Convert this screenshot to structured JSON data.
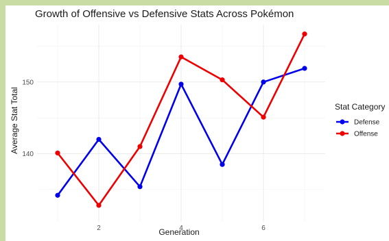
{
  "chart_data": {
    "type": "line",
    "title": "Growth of Offensive vs Defensive Stats Across Pokémon",
    "xlabel": "Generation",
    "ylabel": "Average Stat Total",
    "x": [
      1,
      2,
      3,
      4,
      5,
      6,
      7
    ],
    "xlim": [
      0.5,
      7.5
    ],
    "ylim": [
      130.5,
      158
    ],
    "x_ticks": [
      2,
      4,
      6
    ],
    "y_ticks": [
      140,
      150
    ],
    "grid": true,
    "legend": {
      "title": "Stat Category",
      "position": "right"
    },
    "series": [
      {
        "name": "Defense",
        "color": "#0000ee",
        "values": [
          134.2,
          142.0,
          135.4,
          149.7,
          138.5,
          150.0,
          151.9
        ]
      },
      {
        "name": "Offense",
        "color": "#ee0000",
        "values": [
          140.1,
          132.8,
          141.0,
          153.5,
          150.3,
          145.1,
          156.7
        ]
      }
    ]
  }
}
